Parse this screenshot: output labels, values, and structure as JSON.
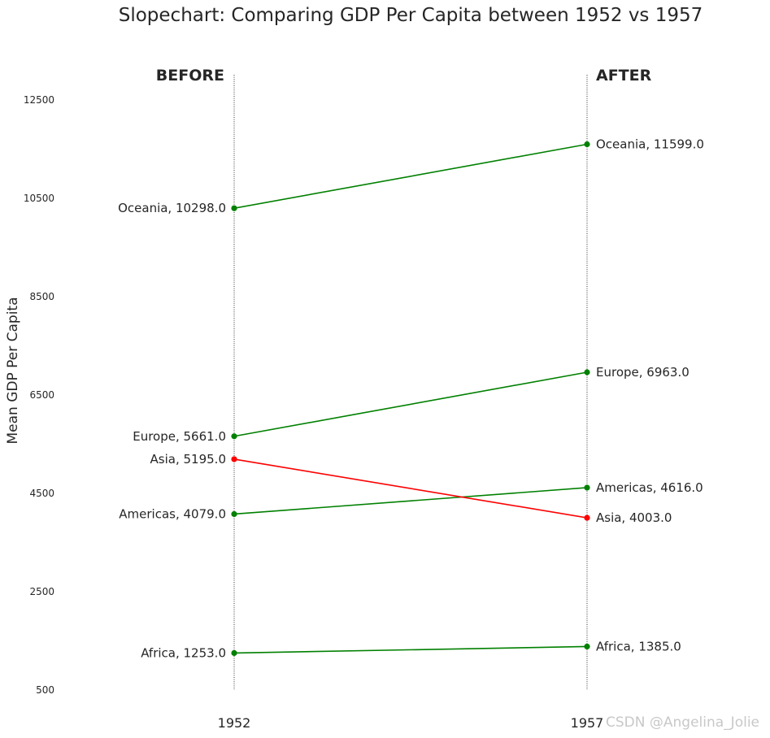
{
  "chart_data": {
    "type": "line",
    "title": "Slopechart: Comparing GDP Per Capita between 1952 vs 1957",
    "xlabel": "",
    "ylabel": "Mean GDP Per Capita",
    "x": [
      "1952",
      "1957"
    ],
    "ylim": [
      500,
      13000
    ],
    "yticks": [
      500,
      2500,
      4500,
      6500,
      8500,
      10500,
      12500
    ],
    "headers": {
      "before": "BEFORE",
      "after": "AFTER"
    },
    "series": [
      {
        "name": "Africa",
        "values": [
          1253.0,
          1385.0
        ],
        "label_1952": "Africa, 1253.0",
        "label_1957": "Africa, 1385.0",
        "color": "#008000"
      },
      {
        "name": "Americas",
        "values": [
          4079.0,
          4616.0
        ],
        "label_1952": "Americas, 4079.0",
        "label_1957": "Americas, 4616.0",
        "color": "#008000"
      },
      {
        "name": "Asia",
        "values": [
          5195.0,
          4003.0
        ],
        "label_1952": "Asia, 5195.0",
        "label_1957": "Asia, 4003.0",
        "color": "#ff0000"
      },
      {
        "name": "Europe",
        "values": [
          5661.0,
          6963.0
        ],
        "label_1952": "Europe, 5661.0",
        "label_1957": "Europe, 6963.0",
        "color": "#008000"
      },
      {
        "name": "Oceania",
        "values": [
          10298.0,
          11599.0
        ],
        "label_1952": "Oceania, 10298.0",
        "label_1957": "Oceania, 11599.0",
        "color": "#008000"
      }
    ],
    "grid": false,
    "legend": "none"
  },
  "watermark": "CSDN @Angelina_Jolie",
  "colors": {
    "increase": "#008000",
    "decrease": "#ff0000",
    "text": "#262626",
    "vline": "#000000"
  }
}
